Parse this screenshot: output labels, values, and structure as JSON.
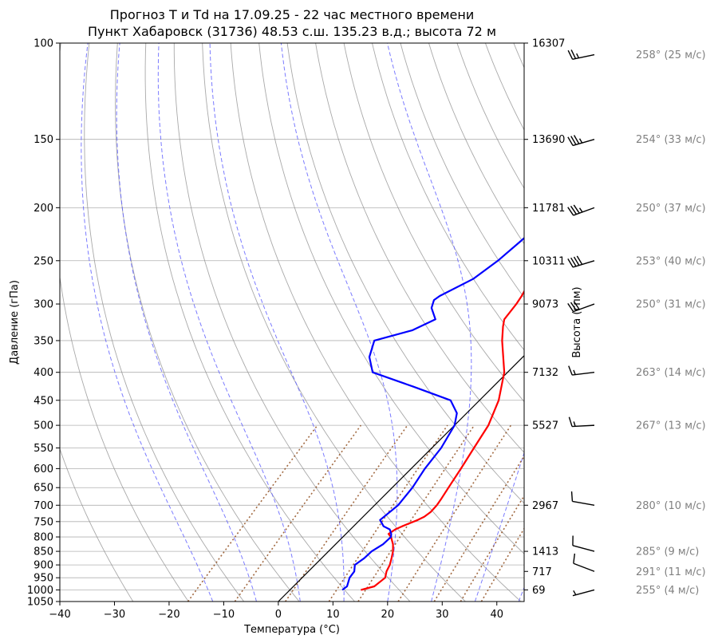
{
  "chart_data": {
    "type": "line",
    "title": "Прогноз T и Td на 17.09.25 - 22 час местного времени",
    "subtitle": "Пункт Хабаровск (31736) 48.53 с.ш. 135.23 в.д.; высота 72 м",
    "xlabel": "Температура (°C)",
    "ylabel": "Давление (гПа)",
    "y2label": "Высота (гпм)",
    "xlim": [
      -40,
      45
    ],
    "ylim": [
      1050,
      100
    ],
    "yscale": "log",
    "x_ticks": [
      -40,
      -30,
      -20,
      -10,
      0,
      10,
      20,
      30,
      40
    ],
    "y_ticks": [
      1050,
      1000,
      950,
      900,
      850,
      800,
      750,
      700,
      650,
      600,
      550,
      500,
      450,
      400,
      350,
      300,
      250,
      200,
      150,
      100
    ],
    "grid": true,
    "skew_t": true,
    "colors": {
      "temperature": "#ff0000",
      "dewpoint": "#0000ff",
      "isotherm": "#000000",
      "dry_adiabat": "#808080",
      "moist_adiabat": "#6666ff",
      "mixing_ratio": "#8b4513",
      "wind_label": "#808080"
    },
    "series": [
      {
        "key": "temperature",
        "p": [
          1000,
          985,
          950,
          925,
          900,
          875,
          850,
          825,
          800,
          790,
          775,
          765,
          745,
          735,
          720,
          700,
          680,
          650,
          600,
          550,
          500,
          450,
          400,
          350,
          330,
          320,
          300,
          290,
          250,
          225,
          200,
          175,
          150,
          125,
          110,
          100
        ],
        "t": [
          13,
          14.8,
          15.2,
          14.3,
          13.7,
          12.8,
          11.8,
          10.5,
          8.8,
          7.8,
          8.2,
          8.9,
          10.6,
          11.2,
          11.5,
          11.4,
          11,
          10.3,
          9.1,
          7.7,
          6.2,
          3.5,
          -0.6,
          -6.8,
          -9.2,
          -10.3,
          -10.9,
          -11.4,
          -14.3,
          -17.1,
          -20.4,
          -24.5,
          -29.8,
          -37.5,
          -43.8,
          -47.5
        ]
      },
      {
        "key": "dewpoint",
        "p": [
          1000,
          985,
          950,
          925,
          900,
          875,
          850,
          825,
          800,
          790,
          775,
          765,
          745,
          700,
          650,
          600,
          550,
          500,
          475,
          450,
          425,
          400,
          375,
          350,
          335,
          320,
          305,
          295,
          290,
          270,
          250,
          230,
          210,
          200,
          175,
          150,
          130,
          110,
          100
        ],
        "t": [
          9.6,
          9.8,
          8.7,
          8.4,
          7.3,
          7.8,
          7.9,
          8.7,
          8.8,
          8.3,
          7.2,
          5.5,
          3.7,
          4.3,
          3.7,
          2.5,
          1.7,
          0,
          -1.8,
          -5.3,
          -14.6,
          -24.7,
          -28.1,
          -30.2,
          -25.1,
          -22.9,
          -25.7,
          -26.7,
          -26.4,
          -23.4,
          -22.2,
          -21.6,
          -21.1,
          -21.9,
          -23.8,
          -27.8,
          -33.4,
          -40.1,
          -46.2
        ]
      }
    ],
    "height_labels": [
      {
        "p": 100,
        "label": "16307"
      },
      {
        "p": 150,
        "label": "13690"
      },
      {
        "p": 200,
        "label": "11781"
      },
      {
        "p": 250,
        "label": "10311"
      },
      {
        "p": 300,
        "label": "9073"
      },
      {
        "p": 400,
        "label": "7132"
      },
      {
        "p": 500,
        "label": "5527"
      },
      {
        "p": 700,
        "label": "2967"
      },
      {
        "p": 850,
        "label": "1413"
      },
      {
        "p": 925,
        "label": "717"
      },
      {
        "p": 1000,
        "label": "69"
      }
    ],
    "winds": [
      {
        "p": 105,
        "direction": 258,
        "speed": 25,
        "label": "258° (25 м/с)"
      },
      {
        "p": 150,
        "direction": 254,
        "speed": 33,
        "label": "254° (33 м/с)"
      },
      {
        "p": 200,
        "direction": 250,
        "speed": 37,
        "label": "250° (37 м/с)"
      },
      {
        "p": 250,
        "direction": 253,
        "speed": 40,
        "label": "253° (40 м/с)"
      },
      {
        "p": 300,
        "direction": 250,
        "speed": 31,
        "label": "250° (31 м/с)"
      },
      {
        "p": 400,
        "direction": 263,
        "speed": 14,
        "label": "263° (14 м/с)"
      },
      {
        "p": 500,
        "direction": 267,
        "speed": 13,
        "label": "267° (13 м/с)"
      },
      {
        "p": 700,
        "direction": 280,
        "speed": 10,
        "label": "280° (10 м/с)"
      },
      {
        "p": 850,
        "direction": 285,
        "speed": 9,
        "label": "285° (9 м/с)"
      },
      {
        "p": 925,
        "direction": 291,
        "speed": 11,
        "label": "291° (11 м/с)"
      },
      {
        "p": 1000,
        "direction": 255,
        "speed": 4,
        "label": "255° (4 м/с)"
      }
    ]
  }
}
